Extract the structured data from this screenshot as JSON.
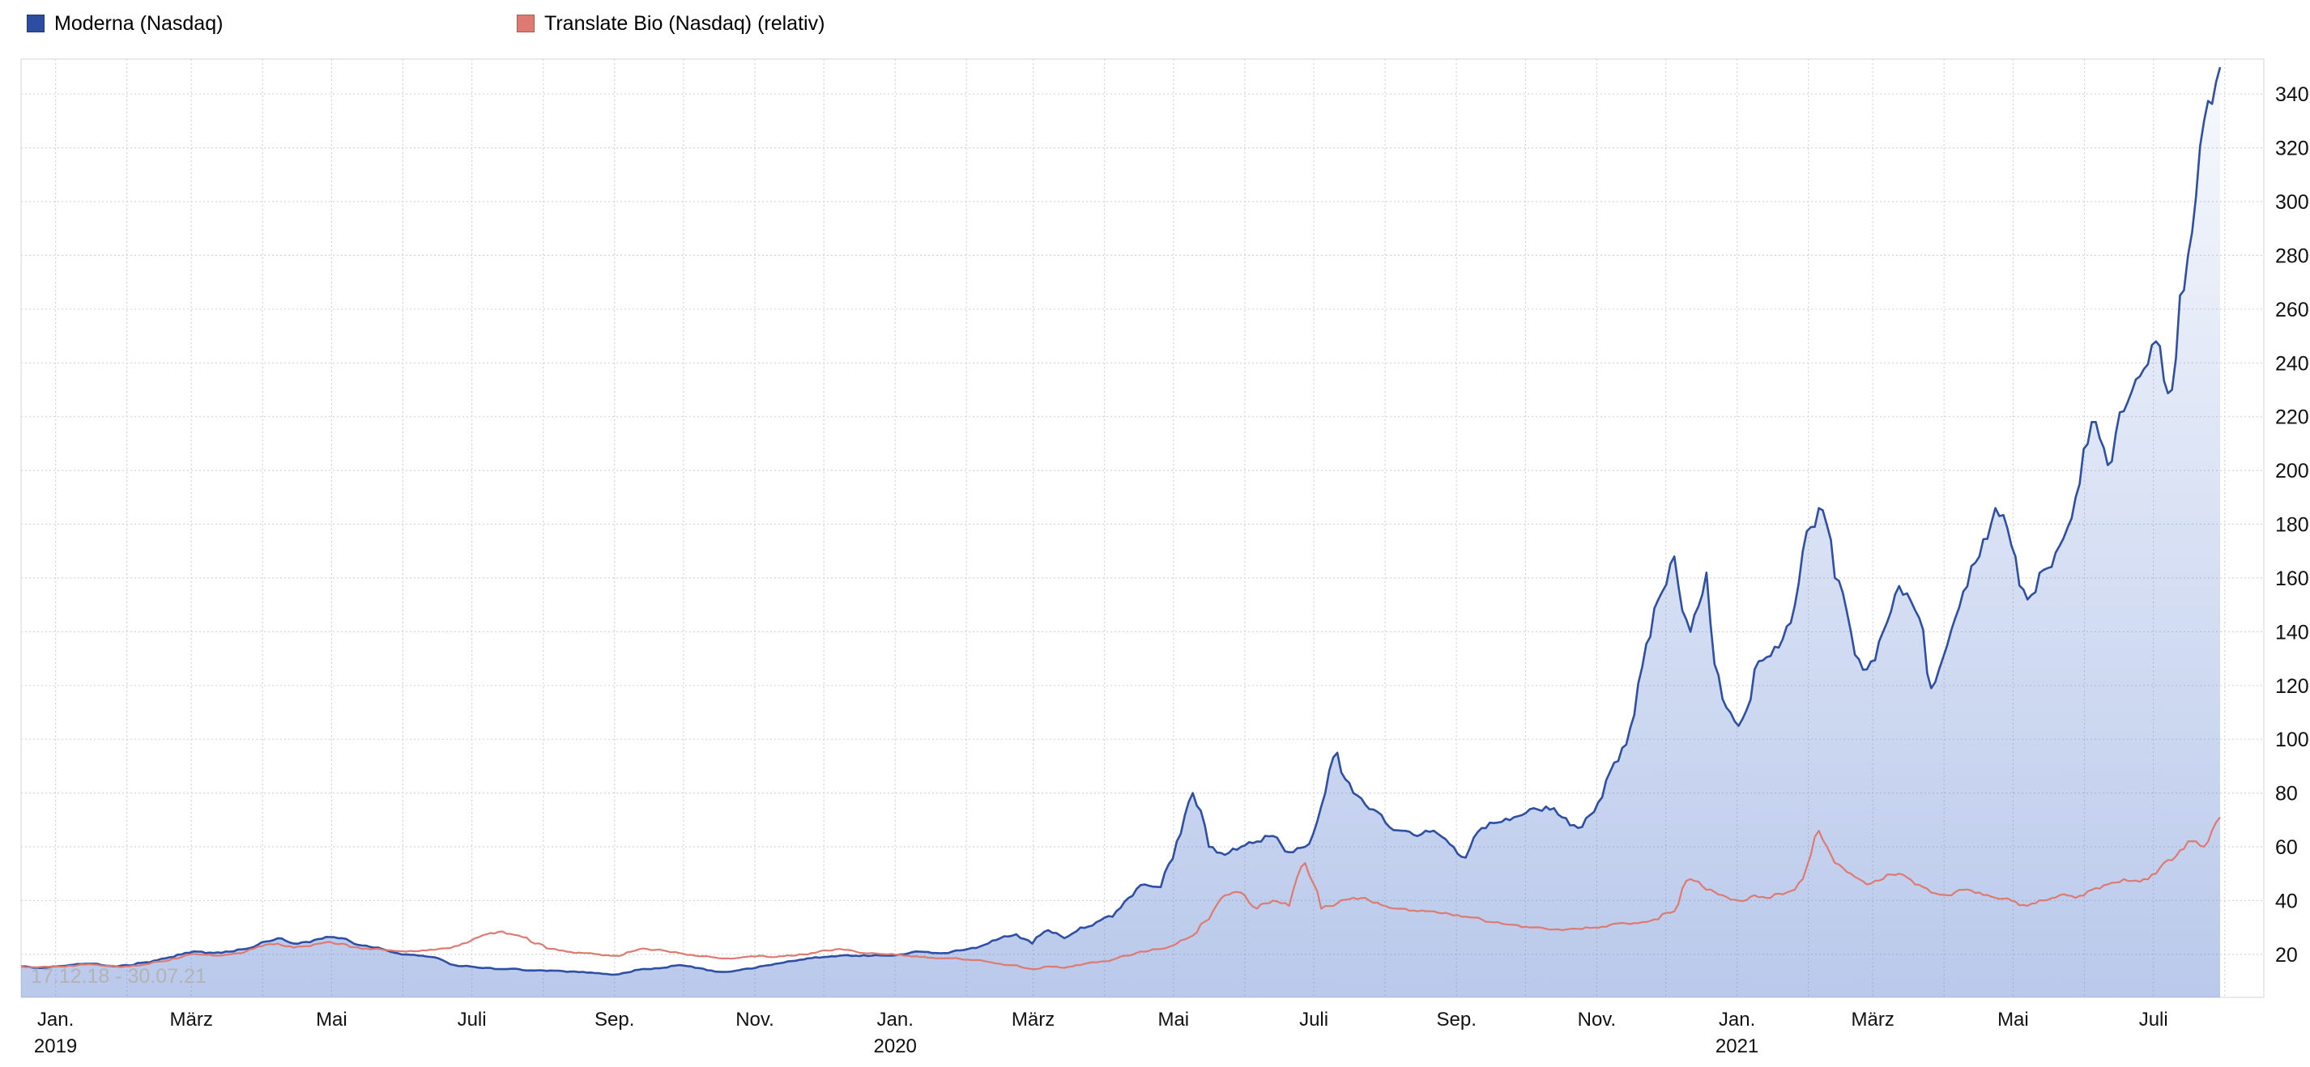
{
  "watermark": "17.12.18 - 30.07.21",
  "legend": {
    "items": [
      {
        "label": "Moderna (Nasdaq)",
        "color": "#2c4da0"
      },
      {
        "label": "Translate Bio (Nasdaq) (relativ)",
        "color": "#de7a71"
      }
    ]
  },
  "colors": {
    "grid": "#d6d6d6",
    "plot_border": "#dcdcdc",
    "axis_text": "#111111",
    "watermark_text": "#b3b3b3",
    "background": "#ffffff"
  },
  "chart_data": {
    "type": "line",
    "title": "",
    "date_range": "17.12.18 - 30.07.21",
    "legend_position": "top-left",
    "grid": true,
    "x_axis": {
      "domain_days": [
        0,
        975
      ],
      "ticks": [
        {
          "day": 15,
          "label": "Jan.",
          "year": "2019"
        },
        {
          "day": 74,
          "label": "März"
        },
        {
          "day": 135,
          "label": "Mai"
        },
        {
          "day": 196,
          "label": "Juli"
        },
        {
          "day": 258,
          "label": "Sep."
        },
        {
          "day": 319,
          "label": "Nov."
        },
        {
          "day": 380,
          "label": "Jan.",
          "year": "2020"
        },
        {
          "day": 440,
          "label": "März"
        },
        {
          "day": 501,
          "label": "Mai"
        },
        {
          "day": 562,
          "label": "Juli"
        },
        {
          "day": 624,
          "label": "Sep."
        },
        {
          "day": 685,
          "label": "Nov."
        },
        {
          "day": 746,
          "label": "Jan.",
          "year": "2021"
        },
        {
          "day": 805,
          "label": "März"
        },
        {
          "day": 866,
          "label": "Mai"
        },
        {
          "day": 927,
          "label": "Juli"
        }
      ],
      "grid_days": [
        15,
        46,
        74,
        105,
        135,
        166,
        196,
        227,
        258,
        288,
        319,
        349,
        380,
        411,
        440,
        471,
        501,
        532,
        562,
        593,
        624,
        654,
        685,
        715,
        746,
        777,
        805,
        836,
        866,
        897,
        927,
        958
      ]
    },
    "y_axis": {
      "side": "right",
      "domain": [
        4,
        353
      ],
      "ticks": [
        20,
        40,
        60,
        80,
        100,
        120,
        140,
        160,
        180,
        200,
        220,
        240,
        260,
        280,
        300,
        320,
        340
      ]
    },
    "series_span_days": [
      0,
      956
    ],
    "series": [
      {
        "name": "Moderna (Nasdaq)",
        "color": "#2e4fa3",
        "area": true,
        "area_fill_color": "#5b7fd0",
        "area_fill_opacity_top": 0.05,
        "area_fill_opacity_bottom": 0.42,
        "values": [
          15.5,
          15,
          15.5,
          16,
          16.5,
          16,
          15.5,
          16,
          17,
          18.5,
          20,
          21,
          20.5,
          21,
          22,
          24.5,
          26,
          24,
          24.5,
          26.5,
          26,
          23.5,
          22.5,
          21,
          20,
          19.5,
          18.5,
          16,
          15.5,
          15,
          14.5,
          14.5,
          14,
          14,
          13.5,
          13.5,
          13,
          12.5,
          13.5,
          14.5,
          15,
          16,
          15,
          14,
          13.5,
          14.5,
          15.5,
          16.5,
          17.5,
          18.5,
          19,
          19.5,
          19.5,
          19.5,
          19.5,
          20,
          21,
          20.5,
          21,
          22,
          23.5,
          26,
          27.5,
          24,
          29,
          26,
          30,
          32,
          34,
          41,
          46,
          45,
          62,
          80,
          60,
          57,
          60,
          62,
          64,
          58,
          60,
          75,
          95,
          80,
          74,
          69,
          66,
          64,
          66,
          61,
          56,
          67,
          69,
          71,
          74,
          75,
          71,
          67,
          73,
          88,
          98,
          127,
          152,
          168,
          140,
          162,
          115,
          105,
          126,
          131,
          142,
          170,
          186,
          160,
          140,
          126,
          140,
          157,
          148,
          119,
          135,
          155,
          168,
          186,
          172,
          152,
          163,
          172,
          190,
          218,
          202,
          222,
          235,
          248,
          230,
          280,
          330,
          350
        ]
      },
      {
        "name": "Translate Bio (Nasdaq) (relativ)",
        "color": "#dd7b72",
        "area": false,
        "values": [
          15.5,
          15.2,
          15.4,
          15.8,
          16.2,
          15.8,
          15.4,
          15.8,
          16.5,
          17.5,
          19,
          20,
          19.5,
          20,
          21,
          23,
          24,
          22.5,
          23,
          24.5,
          24,
          22.5,
          22,
          21.5,
          21,
          21.5,
          22,
          23,
          25,
          27.5,
          28.5,
          27,
          24,
          22,
          21,
          20.5,
          20,
          19.5,
          21,
          22,
          21.5,
          20.5,
          19.5,
          19,
          18.5,
          19,
          19.5,
          19,
          19.5,
          20,
          21.5,
          22,
          21,
          20.5,
          20,
          19.5,
          19,
          18.5,
          18.5,
          18,
          17.5,
          16.5,
          16,
          14.5,
          15.5,
          15,
          16,
          17,
          18,
          19.5,
          21,
          22,
          24,
          27,
          33,
          42,
          43,
          37,
          40,
          38,
          54,
          37,
          39,
          41,
          40,
          38,
          37,
          36,
          36,
          35,
          34,
          33,
          32,
          31,
          30,
          29.5,
          29,
          29.5,
          30,
          31,
          31.5,
          32,
          33,
          36,
          48,
          44,
          42,
          40,
          42,
          41,
          43,
          48,
          66,
          54,
          50,
          46,
          48,
          50,
          46,
          43,
          42,
          44,
          43,
          41,
          40,
          38,
          40,
          42,
          41,
          44,
          46,
          48,
          47,
          50,
          55,
          62,
          60,
          71
        ]
      }
    ]
  }
}
